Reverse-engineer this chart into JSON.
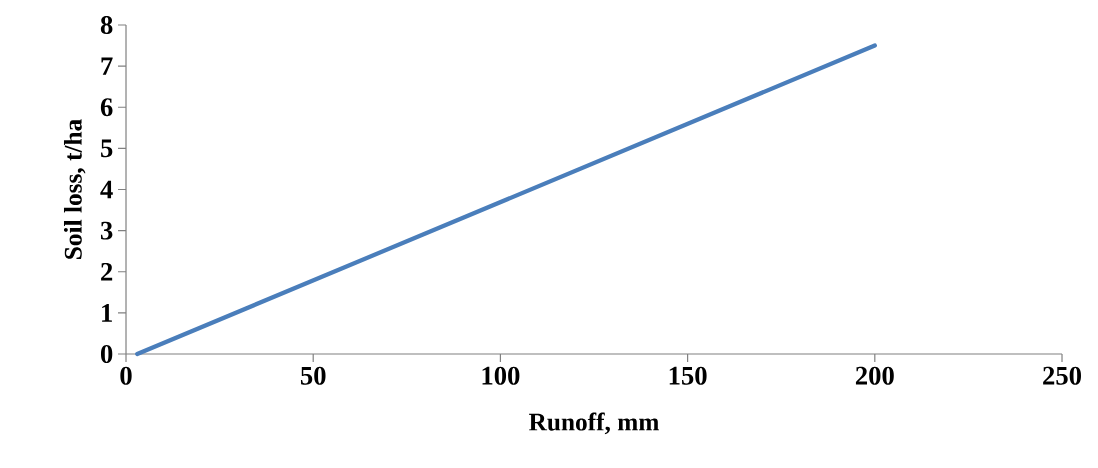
{
  "chart_data": {
    "type": "line",
    "xlabel": "Runoff, mm",
    "ylabel": "Soil loss, t/ha",
    "x": [
      3,
      200
    ],
    "series": [
      {
        "color": "#4a7ebb",
        "values": [
          0,
          7.5
        ]
      }
    ],
    "xlim": [
      0,
      250
    ],
    "xticks": [
      0,
      50,
      100,
      150,
      200,
      250
    ],
    "ylim": [
      0,
      8
    ],
    "yticks": [
      0,
      1,
      2,
      3,
      4,
      5,
      6,
      7,
      8
    ]
  }
}
